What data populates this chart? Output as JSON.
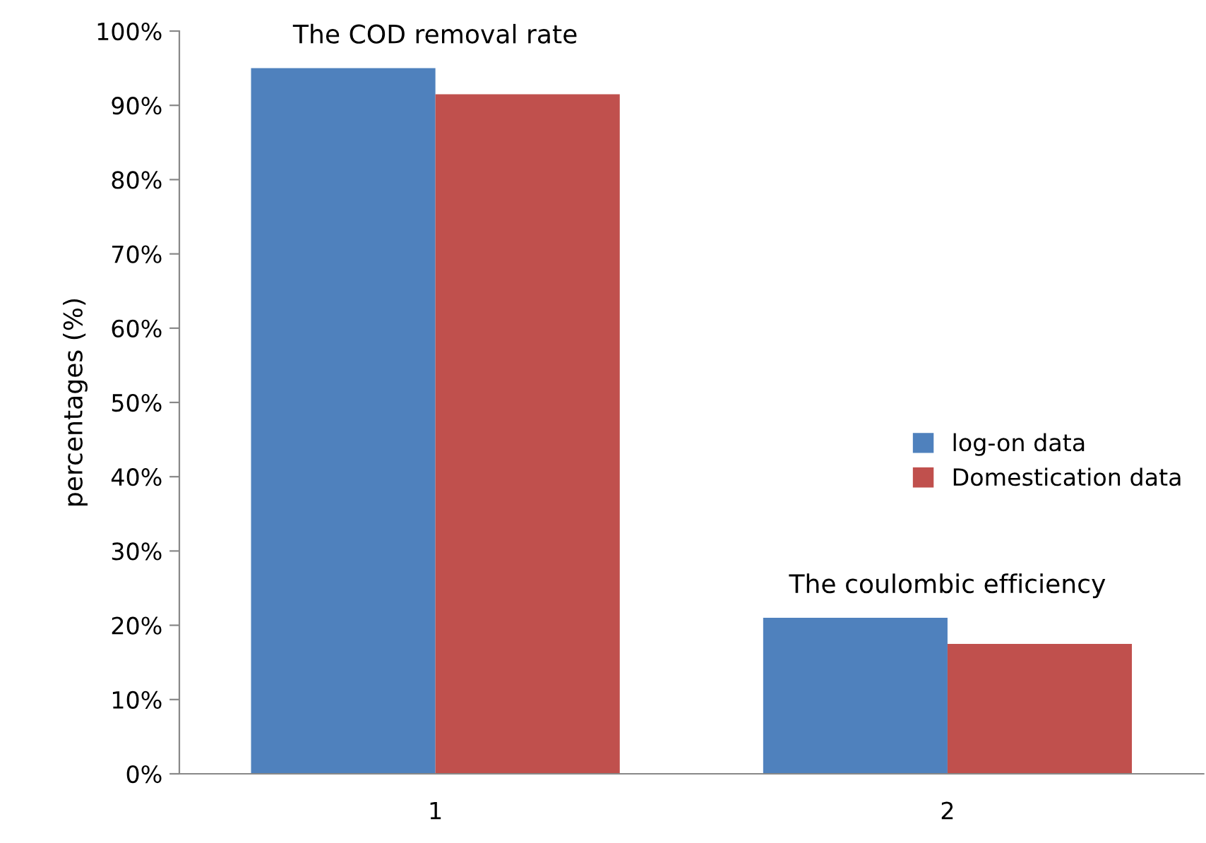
{
  "chart_data": {
    "type": "bar",
    "ylabel": "percentages (%)",
    "categories": [
      "1",
      "2"
    ],
    "series": [
      {
        "name": "log-on data",
        "color": "#4f81bd",
        "values": [
          95,
          21
        ]
      },
      {
        "name": "Domestication data",
        "color": "#c0504d",
        "values": [
          91.5,
          17.5
        ]
      }
    ],
    "ylim": [
      0,
      100
    ],
    "yticks": [
      {
        "value": 0,
        "label": "0%"
      },
      {
        "value": 10,
        "label": "10%"
      },
      {
        "value": 20,
        "label": "20%"
      },
      {
        "value": 30,
        "label": "30%"
      },
      {
        "value": 40,
        "label": "40%"
      },
      {
        "value": 50,
        "label": "50%"
      },
      {
        "value": 60,
        "label": "60%"
      },
      {
        "value": 70,
        "label": "70%"
      },
      {
        "value": 80,
        "label": "80%"
      },
      {
        "value": 90,
        "label": "90%"
      },
      {
        "value": 100,
        "label": "100%"
      }
    ],
    "annotations": [
      {
        "text": "The COD removal rate",
        "x": "1",
        "y": 95
      },
      {
        "text": "The coulombic efficiency",
        "x": "2",
        "y": 21
      }
    ],
    "legend": "center right",
    "grid": false
  }
}
